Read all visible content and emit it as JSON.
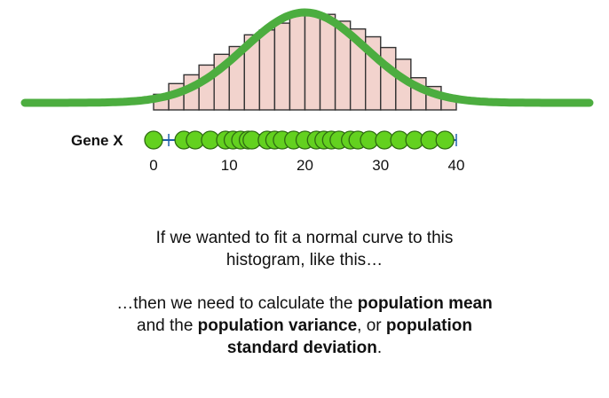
{
  "gene_label": "Gene X",
  "chart_data": {
    "type": "histogram",
    "x_axis": {
      "ticks": [
        0,
        10,
        20,
        30,
        40
      ],
      "tick_labels": [
        "0",
        "10",
        "20",
        "30",
        "40"
      ],
      "range": [
        0,
        40
      ]
    },
    "bins": {
      "width": 2,
      "edges": [
        0,
        2,
        4,
        6,
        8,
        10,
        12,
        14,
        16,
        18,
        20,
        22,
        24,
        26,
        28,
        30,
        32,
        34,
        36,
        38,
        40
      ],
      "heights": [
        0.16,
        0.27,
        0.36,
        0.46,
        0.57,
        0.65,
        0.77,
        0.82,
        0.89,
        0.97,
        1.0,
        0.98,
        0.91,
        0.83,
        0.75,
        0.64,
        0.52,
        0.33,
        0.24,
        0.14
      ]
    },
    "normal_curve": {
      "mean": 20,
      "sd": 8
    },
    "data_points": [
      0,
      4,
      5.5,
      7.5,
      9.5,
      10.5,
      11.5,
      12.5,
      13,
      15,
      16,
      17,
      18.5,
      20,
      21.5,
      22.5,
      23.5,
      24.5,
      26,
      27,
      28.5,
      30.5,
      32.5,
      34.5,
      36.5,
      38.5
    ],
    "colors": {
      "curve": "#4cad3f",
      "bar_fill": "#f2d3cd",
      "bar_stroke": "#333333",
      "point_fill": "#63d11f",
      "point_stroke": "#2f6b12",
      "axis": "#1f5fa8"
    }
  },
  "caption": {
    "line1": "If we wanted to fit a normal curve to this",
    "line2": "histogram, like this…",
    "p2_part1": "…then we need to calculate the ",
    "p2_bold1": "population mean",
    "p2_part2": "and the ",
    "p2_bold2": "population variance",
    "p2_part3": ", or ",
    "p2_bold3": "population",
    "p2_bold4": "standard deviation",
    "p2_part4": "."
  }
}
